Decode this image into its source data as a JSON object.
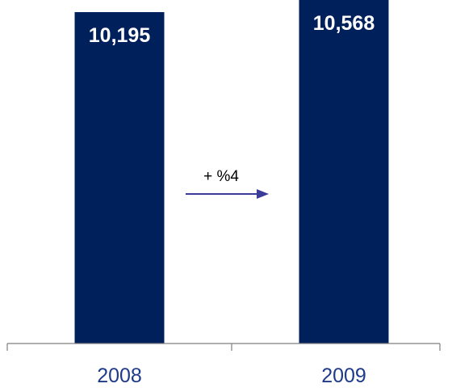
{
  "chart_data": {
    "type": "bar",
    "categories": [
      "2008",
      "2009"
    ],
    "values": [
      10195,
      10568
    ],
    "value_labels": [
      "10,195",
      "10,568"
    ],
    "annotation": "+ %4",
    "bar_color": "#00205b",
    "tick_label_color": "#1e3a8a",
    "arrow_color": "#3b3b9a",
    "ylim": [
      0,
      10568
    ],
    "grid": false,
    "legend": "none"
  }
}
